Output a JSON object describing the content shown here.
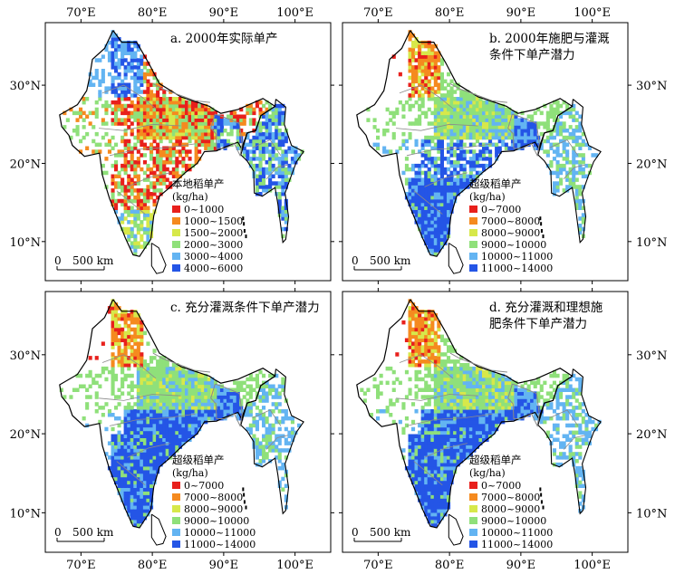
{
  "axes": {
    "lon_labels": [
      "70°E",
      "80°E",
      "90°E",
      "100°E"
    ],
    "lat_labels": [
      "30°N",
      "20°N",
      "10°N"
    ],
    "lon_values": [
      70,
      80,
      90,
      100
    ],
    "lat_values": [
      30,
      20,
      10
    ],
    "lon_range": [
      65,
      105
    ],
    "lat_range": [
      5,
      38
    ]
  },
  "scale_bar": {
    "zero": "0",
    "distance": "500 km"
  },
  "colors": {
    "red": "#e8201c",
    "orange": "#f58a1f",
    "yellow": "#d7e84a",
    "lightgreen": "#8fe07a",
    "lightblue": "#63b4f2",
    "blue": "#2455e6",
    "border": "#000000",
    "state_line": "#8a8a8a"
  },
  "panels": [
    {
      "title_lines": [
        "a. 2000年实际单产"
      ],
      "legend_title": "本地稻单产",
      "legend_unit": "(kg/ha)",
      "legend_items": [
        {
          "label": "0~1000",
          "color": "#e8201c"
        },
        {
          "label": "1000~1500",
          "color": "#f58a1f"
        },
        {
          "label": "1500~2000",
          "color": "#d7e84a"
        },
        {
          "label": "2000~3000",
          "color": "#8fe07a"
        },
        {
          "label": "3000~4000",
          "color": "#63b4f2"
        },
        {
          "label": "4000~6000",
          "color": "#2455e6"
        }
      ]
    },
    {
      "title_lines": [
        "b. 2000年施肥与灌溉",
        "条件下单产潜力"
      ],
      "legend_title": "超级稻单产",
      "legend_unit": "(kg/ha)",
      "legend_items": [
        {
          "label": "0~7000",
          "color": "#e8201c"
        },
        {
          "label": "7000~8000",
          "color": "#f58a1f"
        },
        {
          "label": "8000~9000",
          "color": "#d7e84a"
        },
        {
          "label": "9000~10000",
          "color": "#8fe07a"
        },
        {
          "label": "10000~11000",
          "color": "#63b4f2"
        },
        {
          "label": "11000~14000",
          "color": "#2455e6"
        }
      ]
    },
    {
      "title_lines": [
        "c. 充分灌溉条件下单产潜力"
      ],
      "legend_title": "超级稻单产",
      "legend_unit": "(kg/ha)",
      "legend_items": [
        {
          "label": "0~7000",
          "color": "#e8201c"
        },
        {
          "label": "7000~8000",
          "color": "#f58a1f"
        },
        {
          "label": "8000~9000",
          "color": "#d7e84a"
        },
        {
          "label": "9000~10000",
          "color": "#8fe07a"
        },
        {
          "label": "10000~11000",
          "color": "#63b4f2"
        },
        {
          "label": "11000~14000",
          "color": "#2455e6"
        }
      ]
    },
    {
      "title_lines": [
        "d. 充分灌溉和理想施",
        "肥条件下单产潜力"
      ],
      "legend_title": "超级稻单产",
      "legend_unit": "(kg/ha)",
      "legend_items": [
        {
          "label": "0~7000",
          "color": "#e8201c"
        },
        {
          "label": "7000~8000",
          "color": "#f58a1f"
        },
        {
          "label": "8000~9000",
          "color": "#d7e84a"
        },
        {
          "label": "9000~10000",
          "color": "#8fe07a"
        },
        {
          "label": "10000~11000",
          "color": "#63b4f2"
        },
        {
          "label": "11000~14000",
          "color": "#2455e6"
        }
      ]
    }
  ]
}
